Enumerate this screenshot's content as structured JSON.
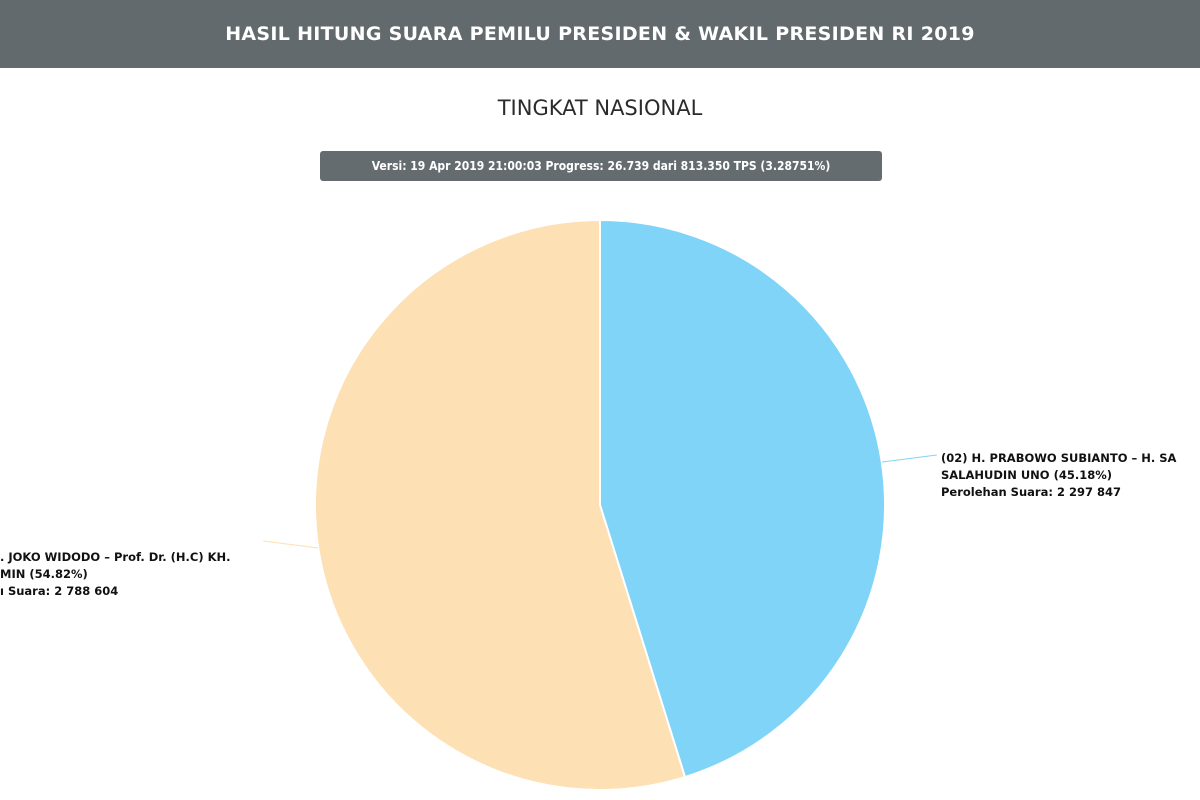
{
  "header": {
    "title": "HASIL HITUNG SUARA PEMILU PRESIDEN & WAKIL PRESIDEN RI 2019"
  },
  "chart_data": {
    "type": "pie",
    "title": "TINGKAT NASIONAL",
    "subtitle": "Versi: 19 Apr 2019 21:00:03 Progress: 26.739 dari 813.350 TPS (3.28751%)",
    "slices": [
      {
        "label_line1": "(02) H. PRABOWO SUBIANTO – H. SA",
        "label_line2": "SALAHUDIN UNO (45.18%)",
        "votes_text": "Perolehan Suara: 2 297 847",
        "percent": 45.18,
        "votes": 2297847,
        "color": "#7fd4f8"
      },
      {
        "label_line1": ". JOKO WIDODO – Prof. Dr. (H.C) KH.",
        "label_line2": "MIN (54.82%)",
        "votes_text": "ı Suara: 2 788 604",
        "percent": 54.82,
        "votes": 2788604,
        "color": "#fde0b4"
      }
    ]
  }
}
